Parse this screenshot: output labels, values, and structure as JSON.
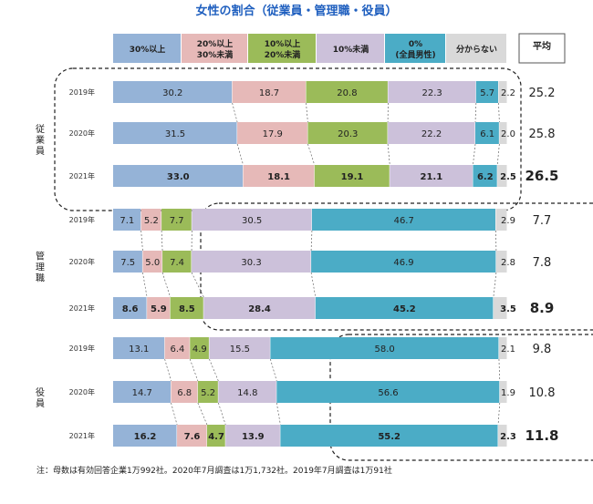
{
  "colors": [
    "#95b3d7",
    "#e6b9b8",
    "#9bbb59",
    "#ccc1da",
    "#4bacc6",
    "#d9d9d9"
  ],
  "chart_data": {
    "type": "bar",
    "orientation": "horizontal-stacked-100",
    "title": "女性の割合（従業員・管理職・役員）",
    "legend": [
      {
        "lines": [
          "30%以上"
        ]
      },
      {
        "lines": [
          "20%以上",
          "30%未満"
        ]
      },
      {
        "lines": [
          "10%以上",
          "20%未満"
        ]
      },
      {
        "lines": [
          "10%未満"
        ]
      },
      {
        "lines": [
          "0%",
          "(全員男性)"
        ]
      },
      {
        "lines": [
          "分からない"
        ]
      }
    ],
    "average_header": "平均",
    "groups": [
      {
        "label": "従業員",
        "rows": [
          {
            "year": "2019年",
            "values": [
              30.2,
              18.7,
              20.8,
              22.3,
              5.7,
              2.2
            ],
            "average": "25.2",
            "highlight": false
          },
          {
            "year": "2020年",
            "values": [
              31.5,
              17.9,
              20.3,
              22.2,
              6.1,
              2.0
            ],
            "average": "25.8",
            "highlight": false
          },
          {
            "year": "2021年",
            "values": [
              33.0,
              18.1,
              19.1,
              21.1,
              6.2,
              2.5
            ],
            "average": "26.5",
            "highlight": true
          }
        ]
      },
      {
        "label": "管理職",
        "rows": [
          {
            "year": "2019年",
            "values": [
              7.1,
              5.2,
              7.7,
              30.5,
              46.7,
              2.9
            ],
            "average": "7.7",
            "highlight": false
          },
          {
            "year": "2020年",
            "values": [
              7.5,
              5.0,
              7.4,
              30.3,
              46.9,
              2.8
            ],
            "average": "7.8",
            "highlight": false
          },
          {
            "year": "2021年",
            "values": [
              8.6,
              5.9,
              8.5,
              28.4,
              45.2,
              3.5
            ],
            "average": "8.9",
            "highlight": true
          }
        ]
      },
      {
        "label": "役員",
        "rows": [
          {
            "year": "2019年",
            "values": [
              13.1,
              6.4,
              4.9,
              15.5,
              58.0,
              2.1
            ],
            "average": "9.8",
            "highlight": false
          },
          {
            "year": "2020年",
            "values": [
              14.7,
              6.8,
              5.2,
              14.8,
              56.6,
              1.9
            ],
            "average": "10.8",
            "highlight": false
          },
          {
            "year": "2021年",
            "values": [
              16.2,
              7.6,
              4.7,
              13.9,
              55.2,
              2.3
            ],
            "average": "11.8",
            "highlight": true
          }
        ]
      }
    ],
    "note": "注：母数は有効回答企業1万992社。2020年7月調査は1万1,732社。2019年7月調査は1万91社"
  }
}
